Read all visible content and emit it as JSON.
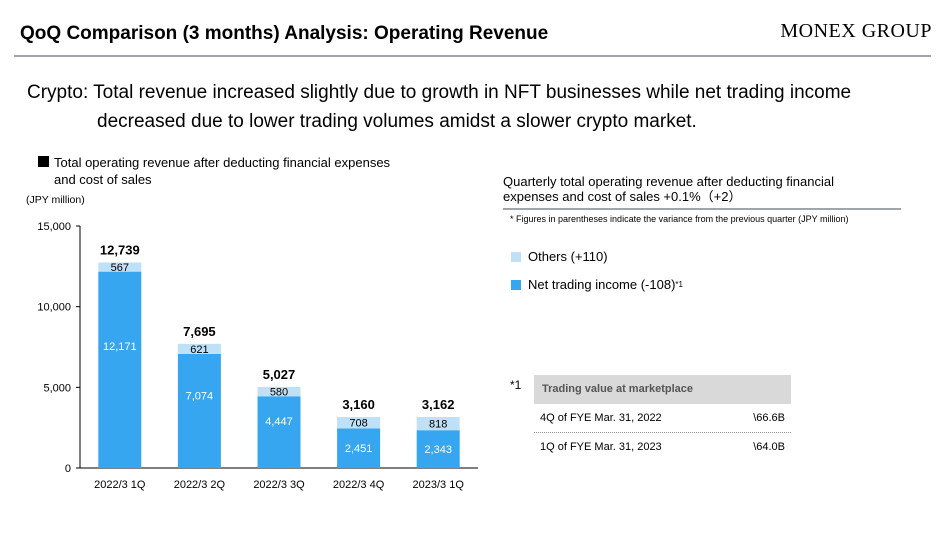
{
  "header": {
    "title": "QoQ Comparison (3 months) Analysis: Operating Revenue",
    "logo": "MONEX GROUP"
  },
  "headline": {
    "line1": "Crypto: Total revenue increased slightly due to growth in NFT businesses while net trading income",
    "line2": "decreased due to lower trading volumes amidst a slower crypto market."
  },
  "left_caption": {
    "line1": "Total operating revenue after deducting financial expenses",
    "line2": "and cost of sales",
    "unit": "(JPY million)"
  },
  "right_panel": {
    "title_line1": "Quarterly total operating revenue after deducting financial",
    "title_line2": "expenses and cost of sales +0.1%（+2）",
    "note": "* Figures in parentheses indicate the variance from the previous quarter (JPY million)",
    "legend_others": "Others (+110)",
    "legend_net": "Net trading income (-108)",
    "legend_net_sup": "*1",
    "footnote_mark": "*1",
    "table": {
      "header": "Trading value at marketplace",
      "rows": [
        {
          "label": "4Q of FYE Mar. 31, 2022",
          "value": "\\66.6B"
        },
        {
          "label": "1Q of FYE Mar. 31, 2023",
          "value": "\\64.0B"
        }
      ]
    }
  },
  "colors": {
    "net_trading": "#37a6f0",
    "others": "#bfe1f7"
  },
  "chart_data": {
    "type": "bar",
    "stacked": true,
    "categories": [
      "2022/3 1Q",
      "2022/3 2Q",
      "2022/3 3Q",
      "2022/3 4Q",
      "2023/3 1Q"
    ],
    "series": [
      {
        "name": "Net trading income",
        "values": [
          12171,
          7074,
          4447,
          2451,
          2343
        ],
        "color": "#37a6f0",
        "labels": [
          "12,171",
          "7,074",
          "4,447",
          "2,451",
          "2,343"
        ]
      },
      {
        "name": "Others",
        "values": [
          567,
          621,
          580,
          708,
          818
        ],
        "color": "#bfe1f7",
        "labels": [
          "567",
          "621",
          "580",
          "708",
          "818"
        ]
      }
    ],
    "totals": [
      12739,
      7695,
      5027,
      3160,
      3162
    ],
    "total_labels": [
      "12,739",
      "7,695",
      "5,027",
      "3,160",
      "3,162"
    ],
    "ylim": [
      0,
      15000
    ],
    "yticks": [
      0,
      5000,
      10000,
      15000
    ],
    "ytick_labels": [
      "0",
      "5,000",
      "10,000",
      "15,000"
    ],
    "ylabel": "(JPY million)",
    "xlabel": "",
    "grid": false
  }
}
